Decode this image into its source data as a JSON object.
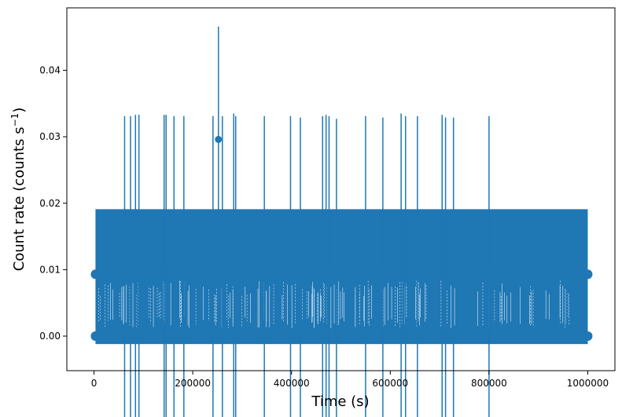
{
  "chart_data": {
    "type": "scatter",
    "style": "errorbar",
    "title": "",
    "xlabel": "Time (s)",
    "ylabel_main": "Count rate (counts s",
    "ylabel_sup": "−1",
    "ylabel_close": ")",
    "xlim": [
      -55000,
      1055000
    ],
    "ylim": [
      -0.0052,
      0.0494
    ],
    "xticks": [
      0,
      200000,
      400000,
      600000,
      800000,
      1000000
    ],
    "xtick_labels": [
      "0",
      "200000",
      "400000",
      "600000",
      "800000",
      "1000000"
    ],
    "yticks": [
      0.0,
      0.01,
      0.02,
      0.03,
      0.04
    ],
    "ytick_labels": [
      "0.00",
      "0.01",
      "0.02",
      "0.03",
      "0.04"
    ],
    "grid": false,
    "legend": "none",
    "series_color": "#1f77b4",
    "data_range": [
      3000,
      1000000
    ],
    "rate_levels": [
      0.0,
      0.0093,
      0.0296
    ],
    "level_error": 0.0093,
    "band": {
      "x_start": 3000,
      "x_end": 1000000,
      "low": -0.0012,
      "high": 0.0191
    },
    "spikes": [
      {
        "x": 62000,
        "y": 0.0093,
        "err": 0.0238
      },
      {
        "x": 74000,
        "y": 0.0093,
        "err": 0.0238
      },
      {
        "x": 84000,
        "y": 0.0093,
        "err": 0.024
      },
      {
        "x": 91000,
        "y": 0.0093,
        "err": 0.024
      },
      {
        "x": 142000,
        "y": 0.0093,
        "err": 0.024
      },
      {
        "x": 146000,
        "y": 0.0093,
        "err": 0.024
      },
      {
        "x": 162000,
        "y": 0.0093,
        "err": 0.0238
      },
      {
        "x": 182000,
        "y": 0.0093,
        "err": 0.0238
      },
      {
        "x": 241000,
        "y": 0.0093,
        "err": 0.0238
      },
      {
        "x": 252000,
        "y": 0.0296,
        "err": 0.017
      },
      {
        "x": 260000,
        "y": 0.0093,
        "err": 0.0238
      },
      {
        "x": 283000,
        "y": 0.0093,
        "err": 0.0242
      },
      {
        "x": 287000,
        "y": 0.0093,
        "err": 0.0238
      },
      {
        "x": 345000,
        "y": 0.0093,
        "err": 0.0238
      },
      {
        "x": 398000,
        "y": 0.0093,
        "err": 0.0238
      },
      {
        "x": 418000,
        "y": 0.0093,
        "err": 0.0236
      },
      {
        "x": 463000,
        "y": 0.0093,
        "err": 0.0238
      },
      {
        "x": 470000,
        "y": 0.0093,
        "err": 0.024
      },
      {
        "x": 476000,
        "y": 0.0093,
        "err": 0.0238
      },
      {
        "x": 491000,
        "y": 0.0093,
        "err": 0.0234
      },
      {
        "x": 550000,
        "y": 0.0093,
        "err": 0.0238
      },
      {
        "x": 585000,
        "y": 0.0093,
        "err": 0.0236
      },
      {
        "x": 622000,
        "y": 0.0093,
        "err": 0.0242
      },
      {
        "x": 631000,
        "y": 0.0093,
        "err": 0.0238
      },
      {
        "x": 655000,
        "y": 0.0093,
        "err": 0.0238
      },
      {
        "x": 705000,
        "y": 0.0093,
        "err": 0.024
      },
      {
        "x": 712000,
        "y": 0.0093,
        "err": 0.0236
      },
      {
        "x": 728000,
        "y": 0.0093,
        "err": 0.0236
      },
      {
        "x": 800000,
        "y": 0.0093,
        "err": 0.0238
      }
    ],
    "high_points": [
      {
        "x": 252000,
        "y": 0.0296
      }
    ],
    "dense_levels": [
      {
        "y": 0.0,
        "err": 0.0093
      },
      {
        "y": 0.0093,
        "err": 0.0093
      }
    ]
  }
}
